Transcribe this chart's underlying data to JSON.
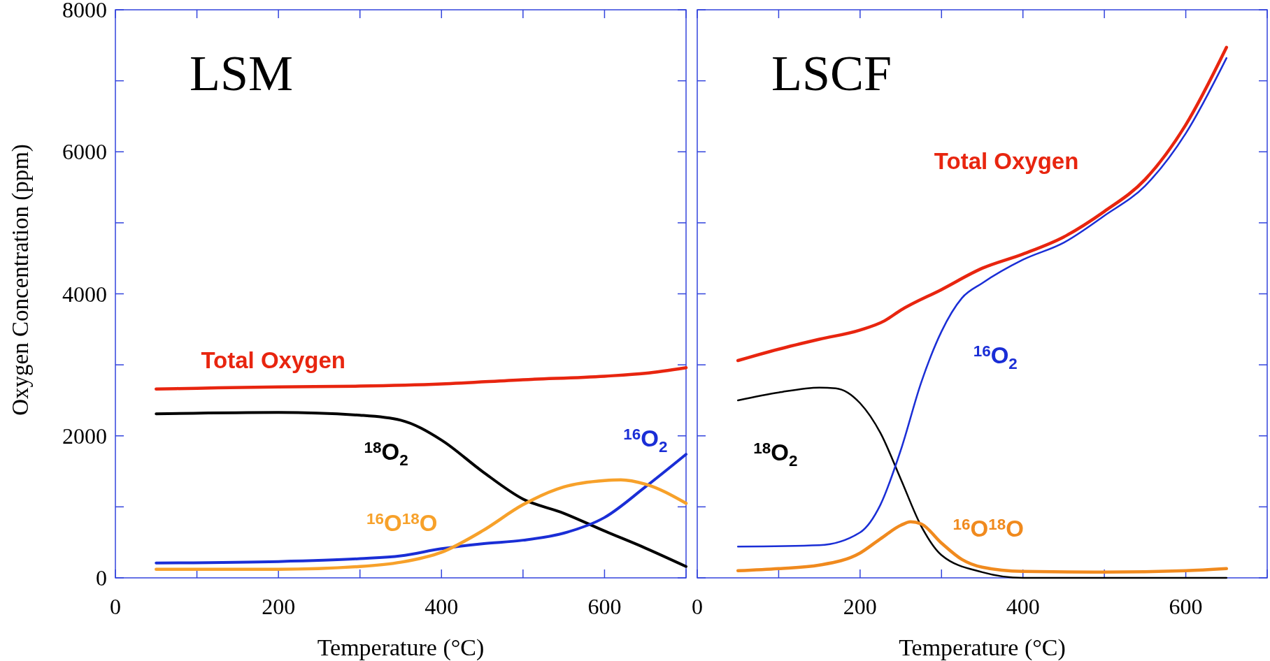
{
  "chart_data": [
    {
      "type": "line",
      "title": "LSM",
      "xlabel": "Temperature (°C)",
      "ylabel": "Oxygen Concentration (ppm)",
      "xlim": [
        0,
        700
      ],
      "ylim": [
        0,
        8000
      ],
      "xticks": [
        0,
        {
          "value": 100,
          "label": null
        },
        200,
        {
          "value": 300,
          "label": null
        },
        400,
        {
          "value": 500,
          "label": null
        },
        600,
        {
          "value": 700,
          "label": null
        }
      ],
      "yticks": [
        0,
        {
          "value": 1000,
          "label": null
        },
        2000,
        {
          "value": 3000,
          "label": null
        },
        4000,
        {
          "value": 5000,
          "label": null
        },
        6000,
        {
          "value": 7000,
          "label": null
        },
        8000
      ],
      "grid": false,
      "series": [
        {
          "name": "Total Oxygen",
          "color": "#e8250f",
          "x": [
            50,
            100,
            200,
            300,
            400,
            500,
            600,
            650,
            700
          ],
          "values": [
            2660,
            2670,
            2690,
            2700,
            2730,
            2790,
            2840,
            2880,
            2960
          ]
        },
        {
          "name": "$^{18}$O$_{2}$",
          "color": "#000000",
          "x": [
            50,
            200,
            300,
            350,
            400,
            450,
            500,
            550,
            600,
            650,
            700
          ],
          "values": [
            2310,
            2330,
            2290,
            2220,
            1940,
            1500,
            1110,
            910,
            660,
            420,
            160
          ]
        },
        {
          "name": "$^{16}$O$_{2}$",
          "color": "#1a2ed6",
          "x": [
            50,
            200,
            300,
            350,
            400,
            450,
            500,
            550,
            600,
            650,
            700
          ],
          "values": [
            210,
            230,
            270,
            310,
            410,
            480,
            530,
            630,
            850,
            1280,
            1740
          ]
        },
        {
          "name": "$^{16}$O$^{18}$O",
          "color": "#f7a12a",
          "x": [
            50,
            200,
            300,
            350,
            400,
            450,
            500,
            550,
            600,
            620,
            650,
            700
          ],
          "values": [
            120,
            120,
            160,
            220,
            360,
            660,
            1030,
            1280,
            1370,
            1380,
            1320,
            1050
          ]
        }
      ]
    },
    {
      "type": "line",
      "title": "LSCF",
      "xlabel": "Temperature (°C)",
      "xlim": [
        0,
        700
      ],
      "ylim": [
        0,
        8000
      ],
      "tick_labels": "x",
      "xticks": [
        0,
        {
          "value": 100,
          "label": null
        },
        200,
        {
          "value": 300,
          "label": null
        },
        400,
        {
          "value": 500,
          "label": null
        },
        600,
        {
          "value": 700,
          "label": null
        }
      ],
      "yticks": [
        0,
        {
          "value": 1000,
          "label": null
        },
        2000,
        {
          "value": 3000,
          "label": null
        },
        4000,
        {
          "value": 5000,
          "label": null
        },
        6000,
        {
          "value": 7000,
          "label": null
        },
        8000
      ],
      "grid": false,
      "series": [
        {
          "name": "Total Oxygen",
          "color": "#e8250f",
          "x": [
            50,
            100,
            150,
            200,
            230,
            250,
            300,
            350,
            400,
            450,
            500,
            550,
            600,
            650
          ],
          "values": [
            3060,
            3220,
            3360,
            3490,
            3620,
            3770,
            4060,
            4360,
            4560,
            4800,
            5160,
            5610,
            6380,
            7470
          ]
        },
        {
          "name": "$^{18}$O$_{2}$",
          "color": "#000000",
          "x": [
            50,
            100,
            150,
            170,
            200,
            225,
            250,
            275,
            300,
            350,
            400,
            650
          ],
          "values": [
            2500,
            2610,
            2680,
            2670,
            2460,
            2040,
            1390,
            730,
            320,
            80,
            0,
            0
          ]
        },
        {
          "name": "$^{16}$O$_{2}$",
          "color": "#1a2ed6",
          "x": [
            50,
            150,
            200,
            225,
            250,
            275,
            300,
            325,
            350,
            400,
            450,
            500,
            550,
            600,
            650
          ],
          "values": [
            440,
            460,
            640,
            1030,
            1800,
            2750,
            3470,
            3940,
            4150,
            4480,
            4720,
            5100,
            5520,
            6260,
            7320
          ]
        },
        {
          "name": "$^{16}$O$^{18}$O",
          "color": "#f08a1e",
          "x": [
            50,
            100,
            150,
            200,
            225,
            250,
            262,
            275,
            300,
            325,
            350,
            400,
            500,
            600,
            650
          ],
          "values": [
            100,
            130,
            180,
            350,
            550,
            740,
            790,
            760,
            490,
            260,
            150,
            90,
            80,
            100,
            130
          ]
        }
      ]
    }
  ]
}
